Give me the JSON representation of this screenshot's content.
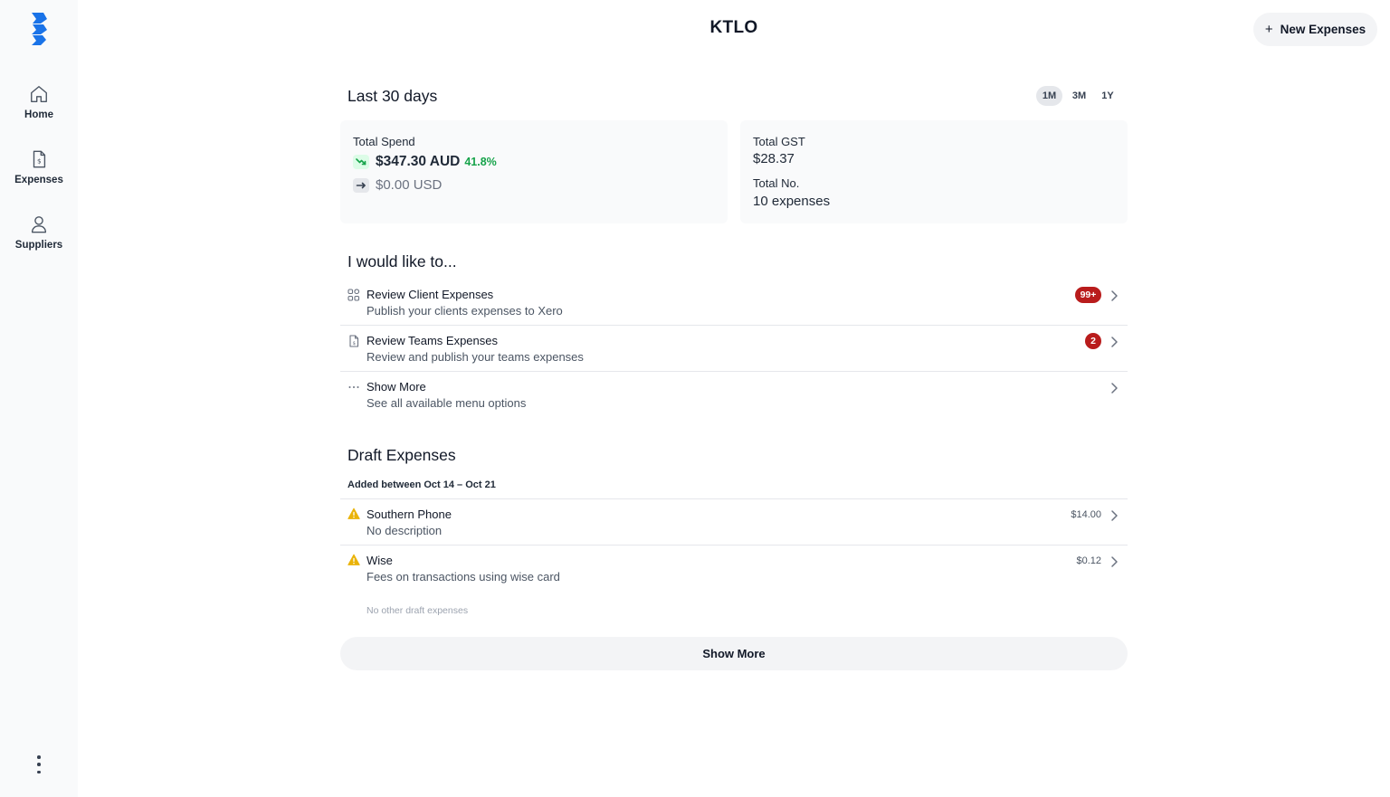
{
  "sidebar": {
    "logo_icon": "brand-logo-icon",
    "items": [
      {
        "label": "Home",
        "icon": "home-icon"
      },
      {
        "label": "Expenses",
        "icon": "expense-document-icon"
      },
      {
        "label": "Suppliers",
        "icon": "user-icon"
      }
    ],
    "more_icon": "kebab-menu-icon"
  },
  "header": {
    "title": "KTLO",
    "new_button_label": "New Expenses",
    "new_button_icon": "plus-icon"
  },
  "summary": {
    "title": "Last 30 days",
    "ranges": [
      {
        "label": "1M",
        "active": true
      },
      {
        "label": "3M",
        "active": false
      },
      {
        "label": "1Y",
        "active": false
      }
    ],
    "spend_card": {
      "label": "Total Spend",
      "aud_amount": "$347.30 AUD",
      "aud_change": "41.8%",
      "aud_trend_icon": "trending-down-icon",
      "usd_amount": "$0.00 USD",
      "usd_trend_icon": "arrow-right-icon"
    },
    "gst_card": {
      "gst_label": "Total GST",
      "gst_value": "$28.37",
      "count_label": "Total No.",
      "count_value": "10 expenses"
    }
  },
  "actions": {
    "title": "I would like to...",
    "items": [
      {
        "title": "Review Client Expenses",
        "subtitle": "Publish your clients expenses to Xero",
        "icon": "apps-grid-icon",
        "badge": "99+"
      },
      {
        "title": "Review Teams Expenses",
        "subtitle": "Review and publish your teams expenses",
        "icon": "expense-document-icon",
        "badge": "2"
      },
      {
        "title": "Show More",
        "subtitle": "See all available menu options",
        "icon": "ellipsis-icon",
        "badge": ""
      }
    ]
  },
  "drafts": {
    "title": "Draft Expenses",
    "date_range": "Added between Oct 14 – Oct 21",
    "items": [
      {
        "title": "Southern Phone",
        "subtitle": "No description",
        "amount": "$14.00",
        "icon": "warning-icon"
      },
      {
        "title": "Wise",
        "subtitle": "Fees on transactions using wise card",
        "amount": "$0.12",
        "icon": "warning-icon"
      }
    ],
    "empty_note": "No other draft expenses",
    "show_more_label": "Show More"
  },
  "colors": {
    "accent_blue": "#1a73e8",
    "badge_red": "#b91c1c",
    "positive_green": "#16a34a",
    "warning_yellow": "#eab308"
  }
}
